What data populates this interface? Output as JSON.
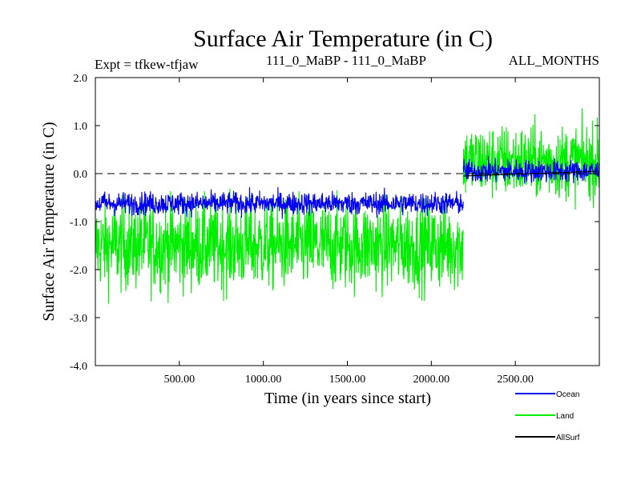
{
  "chart_data": {
    "type": "line",
    "title": "Surface Air Temperature (in C)",
    "subtitle_left": "Expt = tfkew-tfjaw",
    "subtitle_center": "111_0_MaBP - 111_0_MaBP",
    "subtitle_right": "ALL_MONTHS",
    "xlabel": "Time (in years since start)",
    "ylabel": "Surface Air Temperature (in C)",
    "xlim": [
      0,
      3000
    ],
    "ylim": [
      -4.0,
      2.0
    ],
    "x_ticks": [
      500,
      1000,
      1500,
      2000,
      2500
    ],
    "x_tick_labels": [
      "500.00",
      "1000.00",
      "1500.00",
      "2000.00",
      "2500.00"
    ],
    "y_ticks": [
      2.0,
      1.0,
      0.0,
      -1.0,
      -2.0,
      -3.0,
      -4.0
    ],
    "y_tick_labels": [
      "2.0",
      "1.0",
      "0.0",
      "-1.0",
      "-2.0",
      "-3.0",
      "-4.0"
    ],
    "reference_line": 0.0,
    "legend_position": "bottom-right",
    "series": [
      {
        "name": "Land",
        "color": "#00ee00",
        "segments": [
          {
            "x": [
              0,
              2190
            ],
            "mean": -1.5,
            "spread": 0.85,
            "min": -3.3,
            "max": 0.25
          },
          {
            "x": [
              2190,
              3000
            ],
            "mean": 0.25,
            "spread": 0.7,
            "min": -1.85,
            "max": 1.85
          }
        ]
      },
      {
        "name": "Ocean",
        "color": "#0000ee",
        "segments": [
          {
            "x": [
              0,
              2190
            ],
            "mean": -0.62,
            "spread": 0.22,
            "min": -1.1,
            "max": -0.05
          },
          {
            "x": [
              2190,
              3000
            ],
            "mean": 0.05,
            "spread": 0.22,
            "min": -0.45,
            "max": 0.65
          }
        ]
      },
      {
        "name": "AllSurf",
        "color": "#000000",
        "segments": [
          {
            "x": [
              2190,
              3000
            ],
            "start": -0.05,
            "end": 0.05
          }
        ]
      }
    ]
  }
}
